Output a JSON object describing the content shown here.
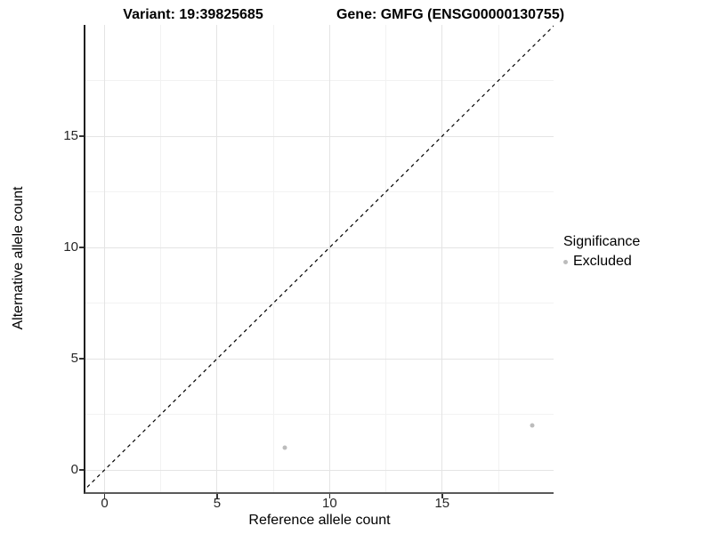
{
  "titles": {
    "variant": "Variant: 19:39825685",
    "gene": "Gene: GMFG (ENSG00000130755)"
  },
  "chart_data": {
    "type": "scatter",
    "xlabel": "Reference allele count",
    "ylabel": "Alternative allele count",
    "xlim": [
      -0.85,
      19.95
    ],
    "ylim": [
      -1,
      20
    ],
    "xticks": {
      "major": [
        0,
        5,
        10,
        15
      ],
      "minor": [
        2.5,
        7.5,
        12.5,
        17.5
      ]
    },
    "yticks": {
      "major": [
        0,
        5,
        10,
        15
      ],
      "minor": [
        2.5,
        7.5,
        12.5,
        17.5
      ]
    },
    "grid": "major+minor",
    "series": [
      {
        "name": "Excluded",
        "color": "#bcbcbc",
        "points": [
          {
            "x": 8,
            "y": 1
          },
          {
            "x": 19,
            "y": 2
          }
        ]
      }
    ],
    "identity_line": {
      "style": "dashed",
      "equation": "y = x",
      "color": "#000000",
      "from": [
        -1,
        -1
      ],
      "to": [
        20,
        20
      ]
    }
  },
  "legend": {
    "title": "Significance",
    "position": "right",
    "items": [
      {
        "label": "Excluded",
        "color": "#bcbcbc"
      }
    ]
  },
  "colors": {
    "background": "#ffffff",
    "grid_major": "#e4e4e4",
    "grid_minor": "#f2f2f2",
    "axis_line": "#333333",
    "text": "#000000"
  }
}
